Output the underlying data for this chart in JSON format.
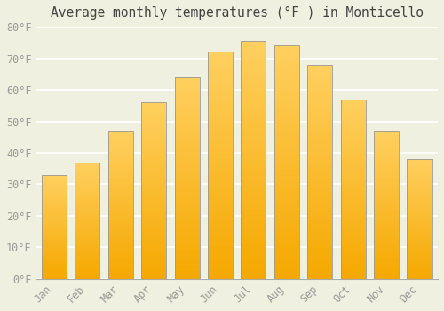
{
  "title": "Average monthly temperatures (°F ) in Monticello",
  "months": [
    "Jan",
    "Feb",
    "Mar",
    "Apr",
    "May",
    "Jun",
    "Jul",
    "Aug",
    "Sep",
    "Oct",
    "Nov",
    "Dec"
  ],
  "values": [
    33,
    37,
    47,
    56,
    64,
    72,
    75.5,
    74,
    68,
    57,
    47,
    38
  ],
  "bar_bottom_color": "#F5A800",
  "bar_top_color": "#FFD060",
  "bar_edge_color": "#999999",
  "background_color": "#f0f0e0",
  "grid_color": "#ffffff",
  "tick_label_color": "#999999",
  "title_color": "#444444",
  "ylim": [
    0,
    80
  ],
  "yticks": [
    0,
    10,
    20,
    30,
    40,
    50,
    60,
    70,
    80
  ],
  "ytick_labels": [
    "0°F",
    "10°F",
    "20°F",
    "30°F",
    "40°F",
    "50°F",
    "60°F",
    "70°F",
    "80°F"
  ],
  "font_family": "monospace",
  "title_fontsize": 10.5,
  "tick_fontsize": 8.5,
  "bar_width": 0.75,
  "grad_steps": 100
}
